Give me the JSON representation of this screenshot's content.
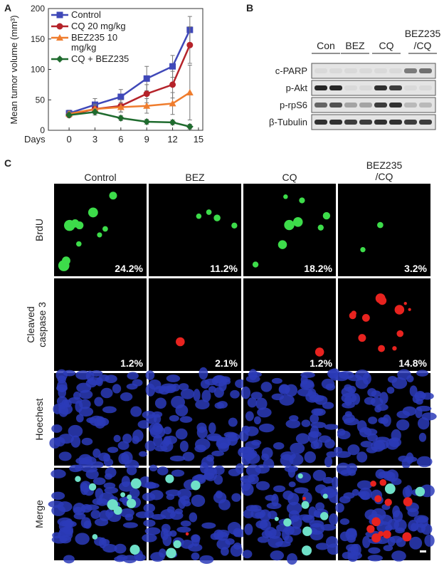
{
  "chart_data": {
    "type": "line",
    "panel_label": "A",
    "ylabel": "Mean tumor volume (mm³)",
    "xlabel": "Days",
    "x": [
      0,
      3,
      6,
      9,
      12,
      14
    ],
    "series": [
      {
        "name": "Control",
        "color": "#3f48b8",
        "marker": "square",
        "values": [
          28,
          42,
          55,
          85,
          105,
          165
        ],
        "errors": [
          5,
          10,
          12,
          20,
          18,
          22
        ]
      },
      {
        "name": "CQ 20 mg/kg",
        "color": "#b5232a",
        "marker": "circle",
        "values": [
          25,
          35,
          40,
          60,
          75,
          140
        ],
        "errors": [
          4,
          8,
          10,
          15,
          22,
          30
        ]
      },
      {
        "name": "BEZ235 10 mg/kg",
        "color": "#ef7d2e",
        "marker": "triangle",
        "values": [
          27,
          35,
          38,
          40,
          44,
          62
        ],
        "errors": [
          4,
          6,
          8,
          12,
          18,
          45
        ]
      },
      {
        "name": "CQ + BEZ235",
        "color": "#1f6b2e",
        "marker": "diamond",
        "values": [
          25,
          30,
          20,
          14,
          13,
          6
        ],
        "errors": [
          3,
          5,
          4,
          4,
          4,
          4
        ]
      }
    ],
    "xlim": [
      -2.4,
      15.5
    ],
    "ylim": [
      0,
      200
    ],
    "xticks": [
      0,
      3,
      6,
      9,
      12,
      15
    ],
    "yticks": [
      0,
      50,
      100,
      150,
      200
    ]
  },
  "panel_b": {
    "panel_label": "B",
    "columns": [
      "Con",
      "BEZ",
      "CQ",
      "BEZ235",
      "/CQ"
    ],
    "rows": [
      "c-PARP",
      "p-Akt",
      "p-rpS6",
      "β-Tubulin"
    ]
  },
  "panel_c": {
    "panel_label": "C",
    "columns": [
      "Control",
      "BEZ",
      "CQ",
      "BEZ235",
      "/CQ"
    ],
    "rows": [
      "BrdU",
      "Cleaved caspase 3",
      "Hoechest",
      "Merge"
    ],
    "percentages": [
      [
        "24.2%",
        "11.2%",
        "18.2%",
        "3.2%"
      ],
      [
        "1.2%",
        "2.1%",
        "1.2%",
        "14.8%"
      ]
    ]
  }
}
